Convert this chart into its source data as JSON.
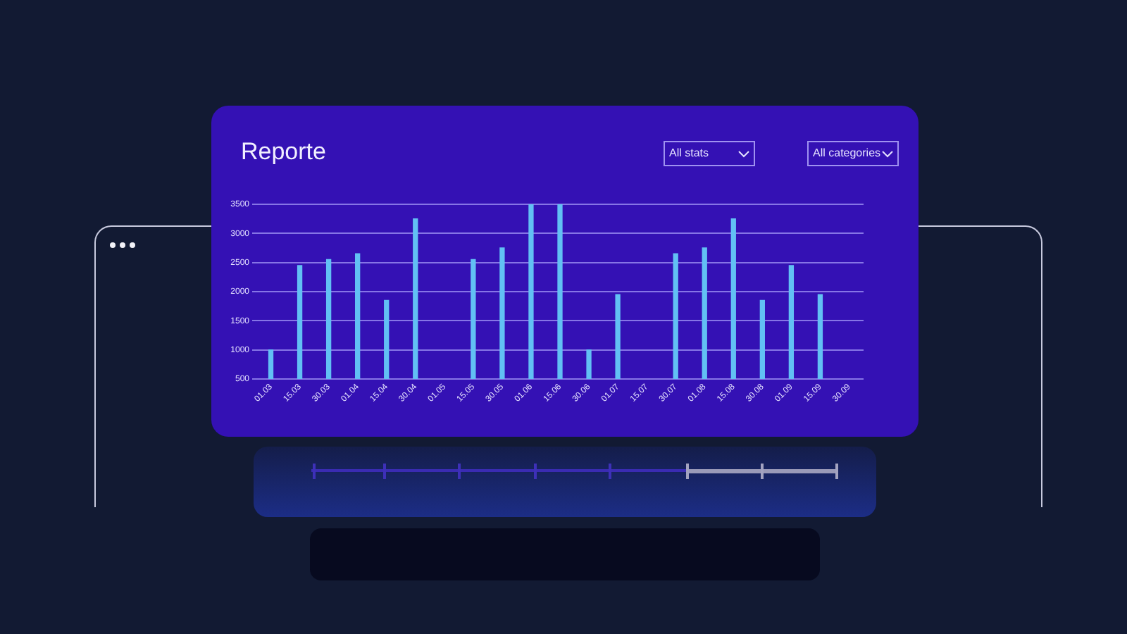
{
  "chart_data": {
    "type": "bar",
    "title": "Reporte",
    "annotations": [
      "All stats",
      "All categories"
    ],
    "categories": [
      "01.03",
      "15.03",
      "30.03",
      "01.04",
      "15.04",
      "30.04",
      "01.05",
      "15.05",
      "30.05",
      "01.06",
      "15.06",
      "30.06",
      "01.07",
      "15.07",
      "30.07",
      "01.08",
      "15.08",
      "30.08",
      "01.09",
      "15.09",
      "30.09"
    ],
    "values": [
      1000,
      2450,
      2550,
      2650,
      1850,
      3250,
      null,
      2550,
      2750,
      3500,
      3500,
      1000,
      1950,
      null,
      2650,
      2750,
      3250,
      1850,
      2450,
      1950,
      null
    ],
    "color": "#62c0f4",
    "ylim": [
      500,
      3500
    ],
    "yticks": [
      500,
      1000,
      1500,
      2000,
      2500,
      3000,
      3500
    ],
    "grid": "y"
  }
}
